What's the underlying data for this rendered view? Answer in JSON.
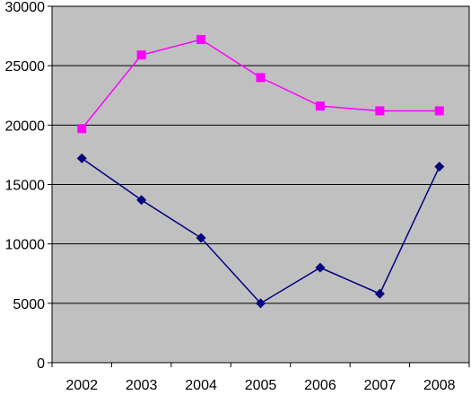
{
  "chart_data": {
    "type": "line",
    "title": "",
    "xlabel": "",
    "ylabel": "",
    "categories": [
      "2002",
      "2003",
      "2004",
      "2005",
      "2006",
      "2007",
      "2008"
    ],
    "ylim": [
      0,
      30000
    ],
    "yticks": [
      0,
      5000,
      10000,
      15000,
      20000,
      25000,
      30000
    ],
    "ytick_labels": [
      "0",
      "5000",
      "10000",
      "15000",
      "20000",
      "25000",
      "30000"
    ],
    "grid": true,
    "legend": "none",
    "plot_background": "#c0c0c0",
    "series": [
      {
        "color": "#ff00ff",
        "marker": "square",
        "values": [
          19700,
          25900,
          27200,
          24000,
          21600,
          21200,
          21200
        ]
      },
      {
        "color": "#000080",
        "marker": "diamond",
        "values": [
          17200,
          13700,
          10500,
          5000,
          8000,
          5800,
          16500
        ]
      }
    ]
  }
}
